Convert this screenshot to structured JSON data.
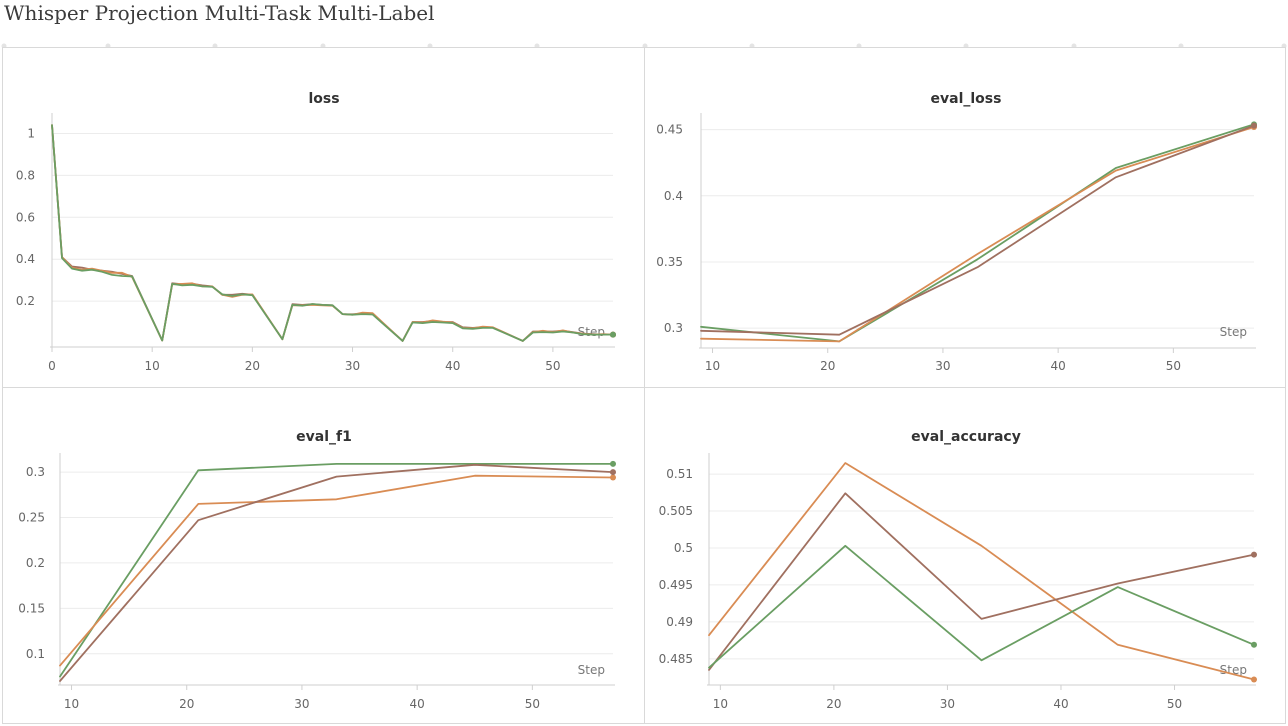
{
  "page": {
    "title": "Whisper Projection Multi-Task Multi-Label"
  },
  "colors": {
    "run_green": "#6a9e63",
    "run_orange": "#d98c54",
    "run_brown": "#a07060"
  },
  "chart_data": [
    {
      "type": "line",
      "title": "loss",
      "xlabel": "Step",
      "ylabel": "",
      "xlim": [
        0,
        56
      ],
      "ylim": [
        0,
        1.05
      ],
      "xticks": [
        0,
        10,
        20,
        30,
        40,
        50
      ],
      "xtick_labels": [
        "0",
        "10",
        "20",
        "30",
        "40",
        "50"
      ],
      "yticks": [
        0.2,
        0.4,
        0.6,
        0.8,
        1
      ],
      "ytick_labels": [
        "0.2",
        "0.4",
        "0.6",
        "0.8",
        "1"
      ],
      "grid": true,
      "series": [
        {
          "color": "#a07060",
          "x": [
            0,
            1,
            2,
            3,
            4,
            5,
            6,
            7,
            8,
            11,
            12,
            13,
            14,
            15,
            16,
            17,
            18,
            19,
            20,
            23,
            24,
            25,
            26,
            27,
            28,
            29,
            30,
            31,
            32,
            35,
            36,
            37,
            38,
            39,
            40,
            41,
            42,
            43,
            44,
            47,
            48,
            49,
            50,
            51,
            52,
            53,
            54,
            55,
            56
          ],
          "y": [
            1.04,
            0.41,
            0.365,
            0.36,
            0.35,
            0.345,
            0.34,
            0.33,
            0.32,
            0.012,
            0.285,
            0.28,
            0.283,
            0.275,
            0.27,
            0.23,
            0.23,
            0.235,
            0.23,
            0.018,
            0.185,
            0.182,
            0.185,
            0.182,
            0.18,
            0.138,
            0.137,
            0.14,
            0.138,
            0.01,
            0.1,
            0.1,
            0.105,
            0.1,
            0.1,
            0.075,
            0.072,
            0.075,
            0.074,
            0.01,
            0.055,
            0.055,
            0.055,
            0.058,
            0.052,
            0.045,
            0.042,
            0.04,
            0.04
          ]
        },
        {
          "color": "#d98c54",
          "x": [
            0,
            1,
            2,
            3,
            4,
            5,
            6,
            7,
            8,
            11,
            12,
            13,
            14,
            15,
            16,
            17,
            18,
            19,
            20,
            23,
            24,
            25,
            26,
            27,
            28,
            29,
            30,
            31,
            32,
            35,
            36,
            37,
            38,
            39,
            40,
            41,
            42,
            43,
            44,
            47,
            48,
            49,
            50,
            51,
            52,
            53,
            54,
            55,
            56
          ],
          "y": [
            1.04,
            0.41,
            0.36,
            0.35,
            0.355,
            0.345,
            0.335,
            0.335,
            0.315,
            0.012,
            0.28,
            0.282,
            0.285,
            0.27,
            0.27,
            0.23,
            0.22,
            0.23,
            0.232,
            0.018,
            0.18,
            0.18,
            0.182,
            0.18,
            0.178,
            0.138,
            0.135,
            0.145,
            0.142,
            0.01,
            0.1,
            0.098,
            0.108,
            0.102,
            0.098,
            0.072,
            0.07,
            0.078,
            0.075,
            0.01,
            0.052,
            0.058,
            0.052,
            0.06,
            0.05,
            0.045,
            0.04,
            0.042,
            0.04
          ]
        },
        {
          "color": "#6a9e63",
          "x": [
            0,
            1,
            2,
            3,
            4,
            5,
            6,
            7,
            8,
            11,
            12,
            13,
            14,
            15,
            16,
            17,
            18,
            19,
            20,
            23,
            24,
            25,
            26,
            27,
            28,
            29,
            30,
            31,
            32,
            35,
            36,
            37,
            38,
            39,
            40,
            41,
            42,
            43,
            44,
            47,
            48,
            49,
            50,
            51,
            52,
            53,
            54,
            55,
            56
          ],
          "y": [
            1.04,
            0.405,
            0.355,
            0.345,
            0.35,
            0.34,
            0.325,
            0.32,
            0.318,
            0.012,
            0.282,
            0.275,
            0.278,
            0.27,
            0.268,
            0.232,
            0.225,
            0.232,
            0.228,
            0.018,
            0.182,
            0.178,
            0.186,
            0.182,
            0.18,
            0.138,
            0.135,
            0.138,
            0.136,
            0.01,
            0.098,
            0.095,
            0.1,
            0.098,
            0.095,
            0.07,
            0.068,
            0.072,
            0.072,
            0.01,
            0.05,
            0.052,
            0.05,
            0.055,
            0.05,
            0.042,
            0.04,
            0.04,
            0.04
          ]
        }
      ]
    },
    {
      "type": "line",
      "title": "eval_loss",
      "xlabel": "Step",
      "ylabel": "",
      "xlim": [
        9,
        57
      ],
      "ylim": [
        0.288,
        0.455
      ],
      "xticks": [
        10,
        20,
        30,
        40,
        50
      ],
      "xtick_labels": [
        "10",
        "20",
        "30",
        "40",
        "50"
      ],
      "yticks": [
        0.3,
        0.35,
        0.4,
        0.45
      ],
      "ytick_labels": [
        "0.3",
        "0.35",
        "0.4",
        "0.45"
      ],
      "grid": true,
      "series": [
        {
          "color": "#6a9e63",
          "x": [
            9,
            21,
            33,
            45,
            57
          ],
          "y": [
            0.301,
            0.29,
            0.352,
            0.421,
            0.454
          ]
        },
        {
          "color": "#d98c54",
          "x": [
            9,
            21,
            33,
            45,
            57
          ],
          "y": [
            0.292,
            0.29,
            0.356,
            0.419,
            0.452
          ]
        },
        {
          "color": "#a07060",
          "x": [
            9,
            21,
            33,
            45,
            57
          ],
          "y": [
            0.298,
            0.295,
            0.346,
            0.414,
            0.453
          ]
        }
      ]
    },
    {
      "type": "line",
      "title": "eval_f1",
      "xlabel": "Step",
      "ylabel": "",
      "xlim": [
        9,
        57
      ],
      "ylim": [
        0.07,
        0.31
      ],
      "xticks": [
        10,
        20,
        30,
        40,
        50
      ],
      "xtick_labels": [
        "10",
        "20",
        "30",
        "40",
        "50"
      ],
      "yticks": [
        0.1,
        0.15,
        0.2,
        0.25,
        0.3
      ],
      "ytick_labels": [
        "0.1",
        "0.15",
        "0.2",
        "0.25",
        "0.3"
      ],
      "grid": true,
      "series": [
        {
          "color": "#6a9e63",
          "x": [
            9,
            21,
            33,
            45,
            57
          ],
          "y": [
            0.075,
            0.302,
            0.309,
            0.309,
            0.309
          ]
        },
        {
          "color": "#d98c54",
          "x": [
            9,
            21,
            33,
            45,
            57
          ],
          "y": [
            0.087,
            0.265,
            0.27,
            0.296,
            0.294
          ]
        },
        {
          "color": "#a07060",
          "x": [
            9,
            21,
            33,
            45,
            57
          ],
          "y": [
            0.07,
            0.247,
            0.295,
            0.308,
            0.3
          ]
        }
      ]
    },
    {
      "type": "line",
      "title": "eval_accuracy",
      "xlabel": "Step",
      "ylabel": "",
      "xlim": [
        9,
        57
      ],
      "ylim": [
        0.482,
        0.5115
      ],
      "xticks": [
        10,
        20,
        30,
        40,
        50
      ],
      "xtick_labels": [
        "10",
        "20",
        "30",
        "40",
        "50"
      ],
      "yticks": [
        0.485,
        0.49,
        0.495,
        0.5,
        0.505,
        0.51
      ],
      "ytick_labels": [
        "0.485",
        "0.49",
        "0.495",
        "0.5",
        "0.505",
        "0.51"
      ],
      "grid": true,
      "series": [
        {
          "color": "#d98c54",
          "x": [
            9,
            21,
            33,
            45,
            57
          ],
          "y": [
            0.4882,
            0.5115,
            0.5003,
            0.4869,
            0.4822
          ]
        },
        {
          "color": "#a07060",
          "x": [
            9,
            21,
            33,
            45,
            57
          ],
          "y": [
            0.4835,
            0.5074,
            0.4904,
            0.4952,
            0.4991
          ]
        },
        {
          "color": "#6a9e63",
          "x": [
            9,
            21,
            33,
            45,
            57
          ],
          "y": [
            0.4838,
            0.5003,
            0.4848,
            0.4947,
            0.4869
          ]
        }
      ]
    }
  ]
}
